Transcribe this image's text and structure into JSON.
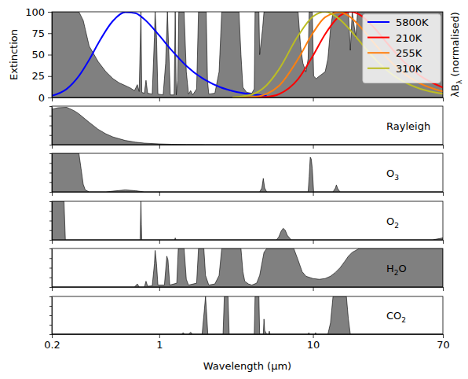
{
  "chart_data": [
    {
      "type": "line",
      "ylabel": "Extinction",
      "y2label": [
        "λB",
        "λ",
        " (normalised)"
      ],
      "log": "x",
      "xlim": [
        0.2,
        70
      ],
      "xticks": [
        0.2,
        1,
        10,
        70
      ],
      "ylim": [
        0,
        100
      ],
      "yticks": [
        0,
        25,
        50,
        75,
        100
      ],
      "tick_labels": "y",
      "legend": "upper right",
      "series": [
        {
          "type": "area",
          "color": "#808080",
          "x": [
            0.2,
            0.3,
            0.32,
            0.35,
            0.4,
            0.45,
            0.5,
            0.55,
            0.6,
            0.65,
            0.69,
            0.72,
            0.74,
            0.76,
            0.77,
            0.8,
            0.82,
            0.84,
            0.9,
            0.93,
            0.94,
            0.96,
            0.98,
            1.06,
            1.1,
            1.13,
            1.15,
            1.18,
            1.25,
            1.27,
            1.29,
            1.32,
            1.34,
            1.45,
            1.5,
            1.55,
            1.6,
            1.65,
            1.75,
            1.8,
            2.02,
            2.06,
            2.1,
            2.3,
            2.45,
            2.55,
            3.3,
            3.4,
            3.5,
            3.7,
            4.0,
            4.15,
            4.2,
            4.45,
            4.5,
            4.7,
            4.8,
            8.0,
            8.3,
            8.6,
            9.0,
            9.3,
            9.45,
            9.9,
            10.1,
            10.5,
            11,
            12,
            12.5,
            13,
            13.5,
            17,
            17.5,
            18,
            19,
            19.5,
            70
          ],
          "values": [
            100,
            100,
            90,
            60,
            42,
            30,
            22,
            17,
            14,
            11,
            8,
            15,
            7,
            100,
            6,
            5,
            20,
            5,
            4,
            70,
            100,
            70,
            4,
            3,
            40,
            100,
            60,
            3,
            3,
            100,
            3,
            20,
            100,
            100,
            30,
            4,
            8,
            3,
            10,
            100,
            100,
            20,
            4,
            5,
            30,
            100,
            100,
            50,
            12,
            6,
            5,
            10,
            100,
            100,
            50,
            80,
            100,
            100,
            60,
            40,
            30,
            45,
            100,
            100,
            25,
            22,
            25,
            30,
            45,
            80,
            100,
            100,
            55,
            100,
            70,
            100,
            100
          ]
        },
        {
          "name": "5800K",
          "color": "#0000ff",
          "x": [
            0.2,
            0.25,
            0.3,
            0.35,
            0.4,
            0.5,
            0.6,
            0.7,
            0.8,
            1,
            1.2,
            1.5,
            2,
            2.5,
            3,
            4,
            5
          ],
          "values": [
            2.0,
            10.0,
            25.1,
            44.0,
            62.9,
            89.4,
            99.5,
            98.3,
            91.2,
            72.3,
            55.4,
            37.0,
            20.2,
            11.9,
            7.6,
            3.6,
            2.0
          ]
        },
        {
          "name": "210K",
          "color": "#ff0000",
          "x": [
            3,
            4,
            5,
            6,
            8,
            10,
            12,
            15,
            17.5,
            20,
            25,
            30,
            40,
            50,
            70
          ],
          "values": [
            0,
            0.1,
            0.8,
            3.9,
            21.5,
            48.8,
            73.9,
            95.5,
            100,
            96.9,
            81.4,
            64.6,
            39.6,
            25.1,
            11.6
          ]
        },
        {
          "name": "255K",
          "color": "#ff7f0e",
          "x": [
            3,
            4,
            5,
            6,
            8,
            10,
            12,
            15,
            17.5,
            20,
            25,
            30,
            40,
            50,
            70
          ],
          "values": [
            0,
            0.6,
            4.3,
            13.5,
            44.9,
            75.4,
            93.7,
            99.6,
            93.8,
            83.8,
            63.4,
            47.1,
            26.7,
            16.2,
            7.1
          ]
        },
        {
          "name": "310K",
          "color": "#bcbd22",
          "x": [
            3,
            4,
            5,
            6,
            8,
            10,
            12,
            15,
            17.5,
            20,
            25,
            30,
            40,
            50,
            70
          ],
          "values": [
            0.2,
            3.5,
            14.5,
            32.7,
            72.0,
            94.5,
            100,
            90.9,
            78.6,
            66.1,
            46.0,
            32.4,
            17.3,
            10.1,
            4.3
          ]
        }
      ]
    },
    {
      "type": "area",
      "label": "Rayleigh",
      "color": "#808080",
      "log": "x",
      "xlim": [
        0.2,
        70
      ],
      "xticks": [
        0.2,
        1,
        10,
        70
      ],
      "ylim": [
        0,
        100
      ],
      "yticks": [
        0,
        25,
        50,
        75,
        100
      ],
      "tick_labels": false,
      "x": [
        0.2,
        0.22,
        0.25,
        0.28,
        0.3,
        0.35,
        0.4,
        0.45,
        0.5,
        0.6,
        0.7,
        0.8,
        1,
        1.2,
        1.5,
        2,
        3,
        5,
        10,
        70
      ],
      "values": [
        92,
        96,
        97,
        88,
        80,
        58,
        40,
        28,
        20,
        11,
        6.5,
        4,
        2,
        1,
        0.5,
        0.2,
        0.1,
        0,
        0,
        0
      ]
    },
    {
      "type": "area",
      "label": [
        "O",
        "3"
      ],
      "color": "#808080",
      "log": "x",
      "xlim": [
        0.2,
        70
      ],
      "xticks": [
        0.2,
        1,
        10,
        70
      ],
      "ylim": [
        0,
        100
      ],
      "yticks": [
        0,
        25,
        50,
        75,
        100
      ],
      "tick_labels": false,
      "x": [
        0.2,
        0.3,
        0.31,
        0.32,
        0.33,
        0.35,
        0.45,
        0.5,
        0.6,
        0.7,
        0.8,
        4.5,
        4.65,
        4.75,
        4.85,
        5.0,
        9.3,
        9.45,
        9.6,
        9.75,
        9.9,
        10.1,
        13.5,
        14.0,
        14.2,
        14.5,
        15,
        70
      ],
      "values": [
        100,
        100,
        60,
        20,
        5,
        0,
        0,
        2,
        5,
        3,
        0,
        0,
        10,
        35,
        10,
        0,
        0,
        40,
        90,
        85,
        60,
        0,
        0,
        10,
        18,
        8,
        0,
        0
      ]
    },
    {
      "type": "area",
      "label": [
        "O",
        "2"
      ],
      "color": "#808080",
      "log": "x",
      "xlim": [
        0.2,
        70
      ],
      "xticks": [
        0.2,
        1,
        10,
        70
      ],
      "ylim": [
        0,
        100
      ],
      "yticks": [
        0,
        25,
        50,
        75,
        100
      ],
      "tick_labels": false,
      "x": [
        0.2,
        0.24,
        0.245,
        0.25,
        0.75,
        0.76,
        0.765,
        0.77,
        1.26,
        1.27,
        1.28,
        5.8,
        6.0,
        6.2,
        6.4,
        6.6,
        6.8,
        7.2,
        60,
        70
      ],
      "values": [
        100,
        100,
        0,
        0,
        0,
        100,
        40,
        0,
        0,
        5,
        0,
        0,
        8,
        22,
        30,
        25,
        12,
        0,
        0,
        5
      ]
    },
    {
      "type": "area",
      "label": [
        "H",
        "2",
        "O"
      ],
      "color": "#808080",
      "log": "x",
      "xlim": [
        0.2,
        70
      ],
      "xticks": [
        0.2,
        1,
        10,
        70
      ],
      "ylim": [
        0,
        100
      ],
      "yticks": [
        0,
        25,
        50,
        75,
        100
      ],
      "tick_labels": false,
      "x": [
        0.2,
        0.69,
        0.72,
        0.74,
        0.8,
        0.82,
        0.84,
        0.9,
        0.93,
        0.94,
        0.96,
        0.98,
        1.08,
        1.12,
        1.14,
        1.17,
        1.3,
        1.33,
        1.45,
        1.5,
        1.55,
        1.75,
        1.8,
        1.95,
        2.0,
        2.1,
        2.3,
        2.45,
        2.55,
        3.4,
        3.5,
        3.6,
        3.8,
        4.0,
        4.3,
        4.5,
        4.8,
        5.0,
        7.5,
        8.0,
        8.5,
        9,
        10,
        11,
        12,
        13,
        14,
        15,
        16,
        17,
        18,
        20,
        70
      ],
      "values": [
        0,
        0,
        8,
        0,
        0,
        15,
        2,
        3,
        60,
        95,
        60,
        5,
        5,
        80,
        70,
        5,
        10,
        100,
        100,
        20,
        5,
        10,
        100,
        100,
        30,
        5,
        8,
        30,
        100,
        100,
        40,
        15,
        8,
        5,
        10,
        30,
        90,
        100,
        100,
        70,
        40,
        28,
        22,
        20,
        22,
        28,
        38,
        50,
        65,
        80,
        90,
        100,
        100
      ]
    },
    {
      "type": "area",
      "label": [
        "CO",
        "2"
      ],
      "color": "#808080",
      "xlabel": "Wavelength (μm)",
      "log": "x",
      "xlim": [
        0.2,
        70
      ],
      "xticks": [
        0.2,
        1,
        10,
        70
      ],
      "ylim": [
        0,
        100
      ],
      "yticks": [
        0,
        25,
        50,
        75,
        100
      ],
      "tick_labels": "x",
      "x": [
        0.2,
        1.4,
        1.43,
        1.46,
        1.55,
        1.6,
        1.65,
        1.9,
        1.96,
        2.0,
        2.03,
        2.07,
        2.6,
        2.65,
        2.8,
        2.85,
        4.15,
        4.2,
        4.45,
        4.5,
        4.75,
        4.8,
        4.85,
        5.0,
        5.15,
        5.2,
        5.25,
        9.3,
        9.4,
        9.5,
        10.3,
        10.4,
        10.5,
        12.5,
        13.0,
        13.5,
        16.5,
        17,
        17.5,
        70
      ],
      "values": [
        0,
        0,
        4,
        0,
        0,
        5,
        0,
        0,
        60,
        100,
        60,
        0,
        0,
        100,
        100,
        0,
        0,
        100,
        100,
        0,
        0,
        40,
        10,
        0,
        0,
        8,
        0,
        0,
        4,
        0,
        0,
        4,
        0,
        0,
        30,
        100,
        100,
        40,
        0,
        0
      ]
    }
  ]
}
